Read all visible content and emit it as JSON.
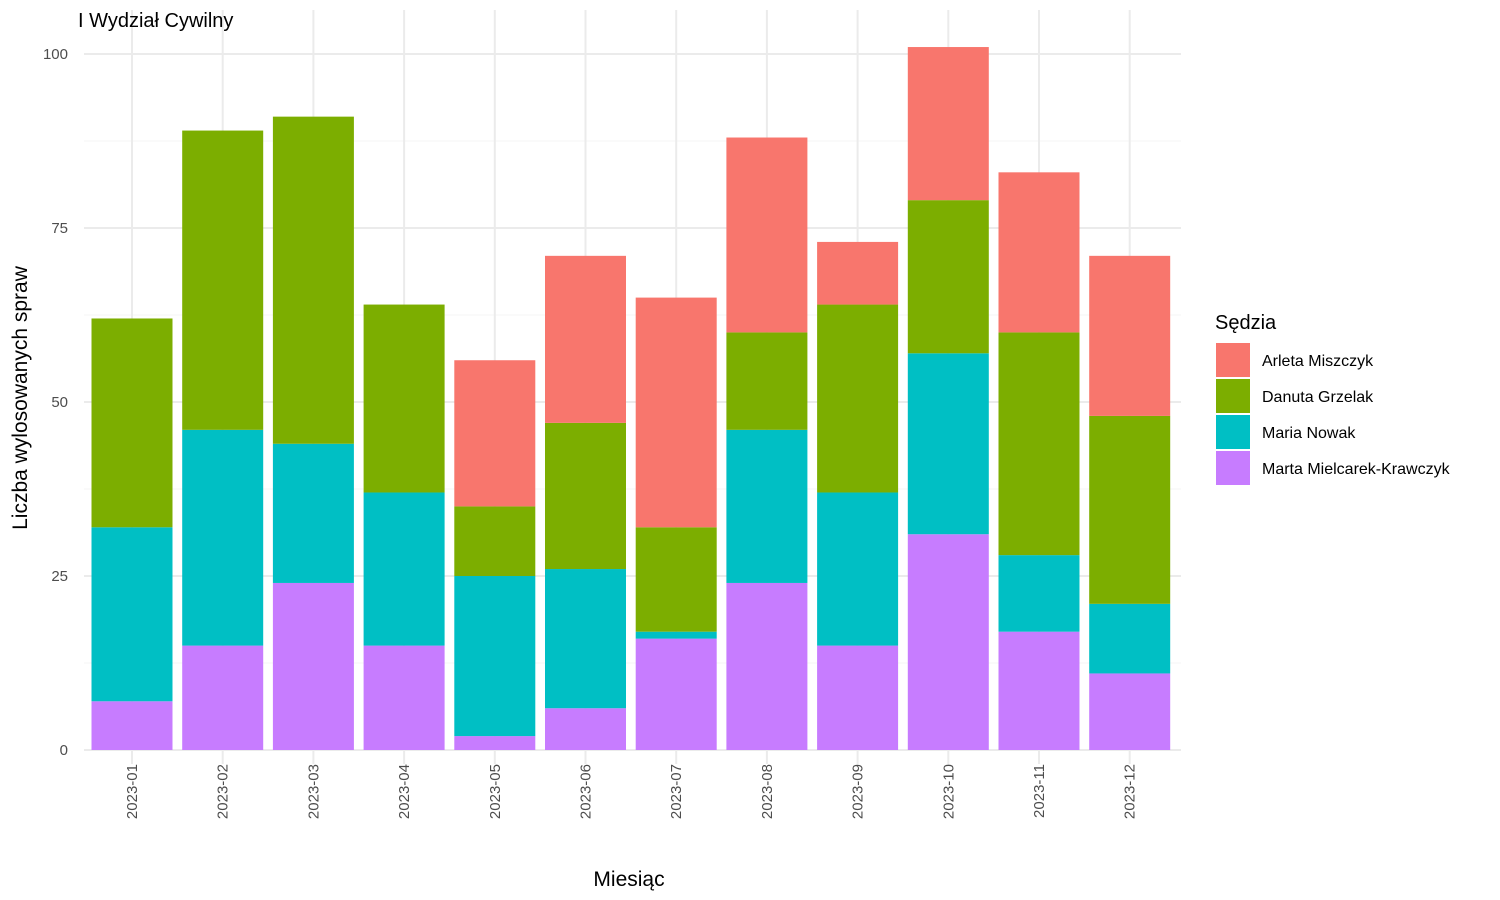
{
  "chart_data": {
    "type": "bar",
    "stacked": true,
    "title": "",
    "subtitle": "I Wydział Cywilny",
    "xlabel": "Miesiąc",
    "ylabel": "Liczba wylosowanych spraw",
    "ylim": [
      0,
      105
    ],
    "yticks": [
      0,
      25,
      50,
      75,
      100
    ],
    "grid": true,
    "legend": {
      "title": "Sędzia",
      "position": "right"
    },
    "categories": [
      "2023-01",
      "2023-02",
      "2023-03",
      "2023-04",
      "2023-05",
      "2023-06",
      "2023-07",
      "2023-08",
      "2023-09",
      "2023-10",
      "2023-11",
      "2023-12"
    ],
    "series": [
      {
        "name": "Marta Mielcarek-Krawczyk",
        "color": "#C77CFF",
        "values": [
          7,
          15,
          24,
          15,
          2,
          6,
          16,
          24,
          15,
          31,
          17,
          11
        ]
      },
      {
        "name": "Maria Nowak",
        "color": "#00BFC4",
        "values": [
          25,
          31,
          20,
          22,
          23,
          20,
          1,
          22,
          22,
          26,
          11,
          10
        ]
      },
      {
        "name": "Danuta Grzelak",
        "color": "#7CAE00",
        "values": [
          30,
          43,
          47,
          27,
          10,
          21,
          15,
          14,
          27,
          22,
          32,
          27
        ]
      },
      {
        "name": "Arleta Miszczyk",
        "color": "#F8766D",
        "values": [
          0,
          0,
          0,
          0,
          21,
          24,
          33,
          28,
          9,
          22,
          23,
          23
        ]
      }
    ],
    "legend_order": [
      "Arleta Miszczyk",
      "Danuta Grzelak",
      "Maria Nowak",
      "Marta Mielcarek-Krawczyk"
    ]
  }
}
